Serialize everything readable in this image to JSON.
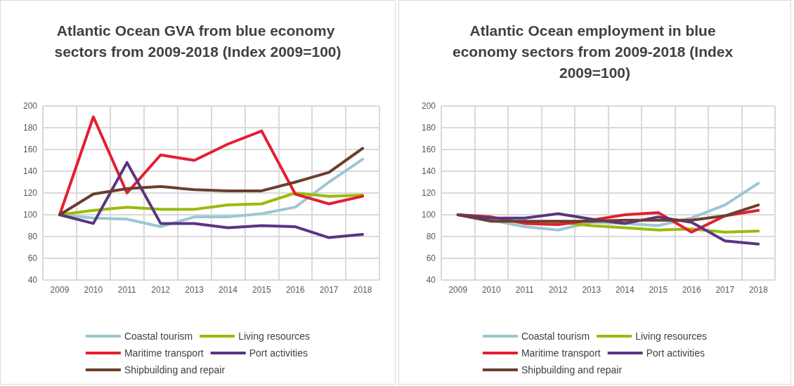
{
  "chart_data": [
    {
      "type": "line",
      "title": "Atlantic Ocean GVA from blue economy sectors from 2009-2018 (Index 2009=100)",
      "categories": [
        "2009",
        "2010",
        "2011",
        "2012",
        "2013",
        "2014",
        "2015",
        "2016",
        "2017",
        "2018"
      ],
      "series": [
        {
          "name": "Coastal tourism",
          "color": "#9dc6d3",
          "values": [
            100,
            97,
            96,
            89,
            98,
            98,
            101,
            107,
            130,
            151
          ]
        },
        {
          "name": "Living resources",
          "color": "#9bbb0c",
          "values": [
            100,
            104,
            107,
            105,
            105,
            109,
            110,
            120,
            117,
            118
          ]
        },
        {
          "name": "Maritime transport",
          "color": "#e41e34",
          "values": [
            100,
            190,
            120,
            155,
            150,
            165,
            177,
            119,
            110,
            117
          ]
        },
        {
          "name": "Port activities",
          "color": "#5b3581",
          "values": [
            100,
            92,
            148,
            92,
            92,
            88,
            90,
            89,
            79,
            82
          ]
        },
        {
          "name": "Shipbuilding and repair",
          "color": "#6b3e2e",
          "values": [
            100,
            119,
            124,
            126,
            123,
            122,
            122,
            130,
            139,
            161
          ]
        }
      ],
      "ylim": [
        40,
        200
      ],
      "yticks": [
        40,
        60,
        80,
        100,
        120,
        140,
        160,
        180,
        200
      ],
      "grid": true,
      "legend": "bottom",
      "marker": "none"
    },
    {
      "type": "line",
      "title": "Atlantic Ocean employment in blue economy sectors from 2009-2018 (Index 2009=100)",
      "categories": [
        "2009",
        "2010",
        "2011",
        "2012",
        "2013",
        "2014",
        "2015",
        "2016",
        "2017",
        "2018"
      ],
      "series": [
        {
          "name": "Coastal tourism",
          "color": "#9dc6d3",
          "values": [
            100,
            95,
            89,
            86,
            93,
            92,
            90,
            97,
            109,
            129
          ]
        },
        {
          "name": "Living resources",
          "color": "#9bbb0c",
          "values": [
            null,
            null,
            93,
            93,
            90,
            88,
            86,
            87,
            84,
            85
          ]
        },
        {
          "name": "Maritime transport",
          "color": "#e41e34",
          "values": [
            100,
            98,
            92,
            91,
            95,
            100,
            102,
            84,
            99,
            104
          ]
        },
        {
          "name": "Port activities",
          "color": "#5b3581",
          "values": [
            100,
            97,
            97,
            101,
            96,
            92,
            98,
            93,
            76,
            73
          ]
        },
        {
          "name": "Shipbuilding and repair",
          "color": "#6b3e2e",
          "values": [
            100,
            94,
            94,
            94,
            94,
            95,
            95,
            95,
            99,
            109
          ]
        }
      ],
      "ylim": [
        40,
        200
      ],
      "yticks": [
        40,
        60,
        80,
        100,
        120,
        140,
        160,
        180,
        200
      ],
      "grid": true,
      "legend": "bottom",
      "marker": "none"
    }
  ]
}
